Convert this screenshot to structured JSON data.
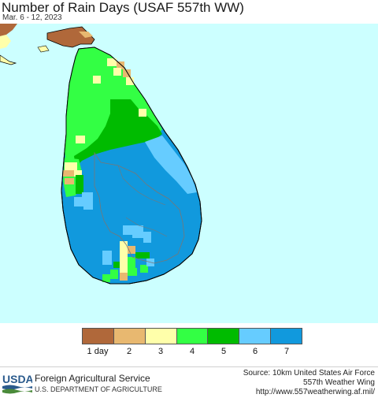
{
  "header": {
    "title": "Number of Rain Days (USAF 557th WW)",
    "subtitle": "Mar. 6 - 12, 2023"
  },
  "map": {
    "ocean_color": "#ccffff",
    "land_outline_color": "#000000",
    "district_line_color": "#777777",
    "region": "Sri Lanka"
  },
  "legend": {
    "items": [
      {
        "label": "1 day",
        "color": "#b0683a"
      },
      {
        "label": "2",
        "color": "#e8b870"
      },
      {
        "label": "3",
        "color": "#ffffaa"
      },
      {
        "label": "4",
        "color": "#33ff44"
      },
      {
        "label": "5",
        "color": "#00bb00"
      },
      {
        "label": "6",
        "color": "#66ccff"
      },
      {
        "label": "7",
        "color": "#1199dd"
      }
    ]
  },
  "footer": {
    "logo_text": "USDA",
    "agency": "Foreign Agricultural Service",
    "department": "U.S. DEPARTMENT OF AGRICULTURE",
    "source_line1": "Source: 10km United States Air Force",
    "source_line2": "557th Weather Wing",
    "source_line3": "http://www.557weatherwing.af.mil/"
  }
}
